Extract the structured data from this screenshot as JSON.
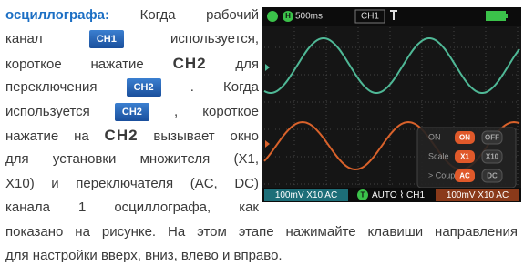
{
  "text": {
    "lines": [
      [
        {
          "heading": "осциллографа:"
        },
        {
          "t": "Когда"
        },
        {
          "t": "рабочий"
        }
      ],
      [
        {
          "t": "канал"
        },
        {
          "button": "CH1"
        },
        {
          "t": "используется,"
        }
      ],
      [
        {
          "t": "короткое нажатие"
        },
        {
          "key": "CH2"
        },
        {
          "t": "для"
        }
      ],
      [
        {
          "t": "переключения"
        },
        {
          "button": "CH2"
        },
        {
          "t": ". Когда"
        }
      ],
      [
        {
          "t": "используется"
        },
        {
          "button": "CH2"
        },
        {
          "t": ", короткое"
        }
      ],
      [
        {
          "t": "нажатие на"
        },
        {
          "key": "CH2"
        },
        {
          "t": "вызывает окно"
        }
      ],
      [
        {
          "t": "для установки множителя (X1,"
        }
      ],
      [
        {
          "t": "X10) и переключателя (AC, DC)"
        }
      ],
      [
        {
          "t": "канала 1 осциллографа, как"
        }
      ],
      [
        {
          "t": "показано на рисунке. На этом этапе нажимайте клавиши направления"
        }
      ],
      [
        {
          "t": "для настройки вверх, вниз, влево и вправо."
        }
      ]
    ]
  },
  "screen": {
    "timebase_icon": "H",
    "timebase": "500ms",
    "channel": "CH1",
    "menu": [
      {
        "label": "ON",
        "options": [
          "ON",
          "OFF"
        ]
      },
      {
        "label": "Scale",
        "options": [
          "X1",
          "X10"
        ]
      },
      {
        "label": "> Coup",
        "options": [
          "AC",
          "DC"
        ]
      }
    ],
    "bottom": {
      "ch1": "100mV X10 AC",
      "trigger_icon": "T",
      "trigger": "AUTO ⌇ CH1",
      "ch2": "100mV X10 AC"
    }
  }
}
